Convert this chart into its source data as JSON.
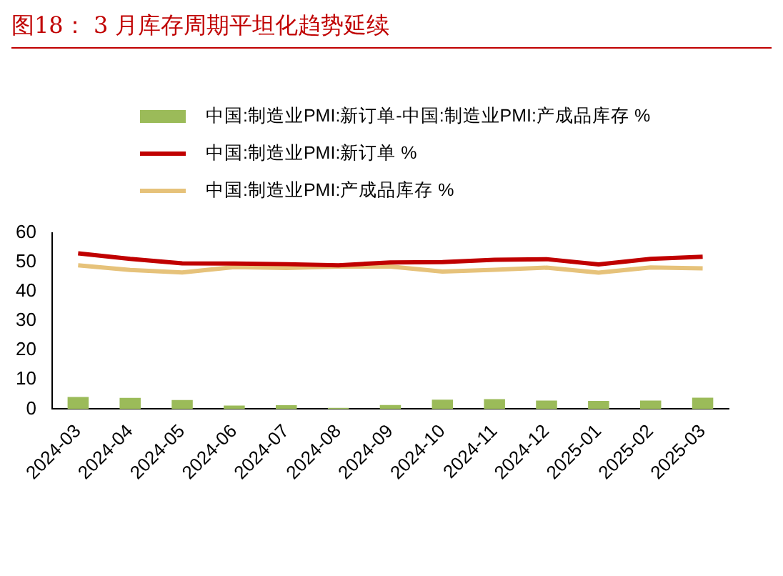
{
  "chart_data": {
    "type": "bar",
    "title": "图18： 3 月库存周期平坦化趋势延续",
    "categories": [
      "2024-03",
      "2024-04",
      "2024-05",
      "2024-06",
      "2024-07",
      "2024-08",
      "2024-09",
      "2024-10",
      "2024-11",
      "2024-12",
      "2025-01",
      "2025-02",
      "2025-03"
    ],
    "series": [
      {
        "name": "中国:制造业PMI:新订单-中国:制造业PMI:产成品库存 %",
        "color": "#9bbb59",
        "values": [
          4.1,
          3.8,
          3.1,
          1.2,
          1.3,
          0.4,
          1.4,
          3.2,
          3.4,
          2.9,
          2.8,
          2.9,
          3.9
        ]
      },
      {
        "name": "中国:制造业PMI:新订单 %",
        "type": "line",
        "color": "#c00000",
        "values": [
          53.0,
          51.1,
          49.6,
          49.5,
          49.3,
          48.9,
          49.9,
          50.0,
          50.8,
          51.0,
          49.2,
          51.1,
          51.8
        ]
      },
      {
        "name": "中国:制造业PMI:产成品库存 %",
        "type": "line",
        "color": "#e6c27a",
        "values": [
          48.9,
          47.3,
          46.5,
          48.3,
          48.0,
          48.5,
          48.5,
          46.8,
          47.4,
          48.1,
          46.4,
          48.2,
          47.9
        ]
      }
    ],
    "ylim": [
      0,
      60
    ],
    "yticks": [
      0,
      10,
      20,
      30,
      40,
      50,
      60
    ],
    "grid": false,
    "legend": "top",
    "marker": "none"
  }
}
